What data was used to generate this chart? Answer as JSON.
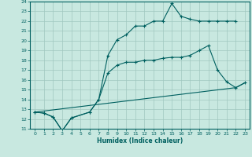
{
  "xlabel": "Humidex (Indice chaleur)",
  "xlim": [
    -0.5,
    23.5
  ],
  "ylim": [
    11,
    24
  ],
  "xticks": [
    0,
    1,
    2,
    3,
    4,
    5,
    6,
    7,
    8,
    9,
    10,
    11,
    12,
    13,
    14,
    15,
    16,
    17,
    18,
    19,
    20,
    21,
    22,
    23
  ],
  "yticks": [
    11,
    12,
    13,
    14,
    15,
    16,
    17,
    18,
    19,
    20,
    21,
    22,
    23,
    24
  ],
  "bg_color": "#c8e8e0",
  "grid_color": "#a0c8c0",
  "line_color": "#006060",
  "line1_x": [
    0,
    1,
    2,
    3,
    4,
    6,
    7,
    8,
    9,
    10,
    11,
    12,
    13,
    14,
    15,
    16,
    17,
    18,
    19,
    20,
    21,
    22
  ],
  "line1_y": [
    12.7,
    12.6,
    12.2,
    10.8,
    12.1,
    12.7,
    14.0,
    18.5,
    20.1,
    20.6,
    21.5,
    21.5,
    22.0,
    22.0,
    23.8,
    22.5,
    22.2,
    22.0,
    22.0,
    22.0,
    22.0,
    22.0
  ],
  "line2_x": [
    0,
    1,
    2,
    3,
    4,
    6,
    7,
    8,
    9,
    10,
    11,
    12,
    13,
    14,
    15,
    16,
    17,
    18,
    19,
    20,
    21,
    22,
    23
  ],
  "line2_y": [
    12.7,
    12.6,
    12.2,
    10.8,
    12.1,
    12.7,
    14.0,
    16.7,
    17.5,
    17.8,
    17.8,
    18.0,
    18.0,
    18.2,
    18.3,
    18.3,
    18.5,
    19.0,
    19.5,
    17.0,
    15.8,
    15.2,
    15.7
  ],
  "line3_x": [
    0,
    22,
    23
  ],
  "line3_y": [
    12.7,
    15.2,
    15.7
  ]
}
